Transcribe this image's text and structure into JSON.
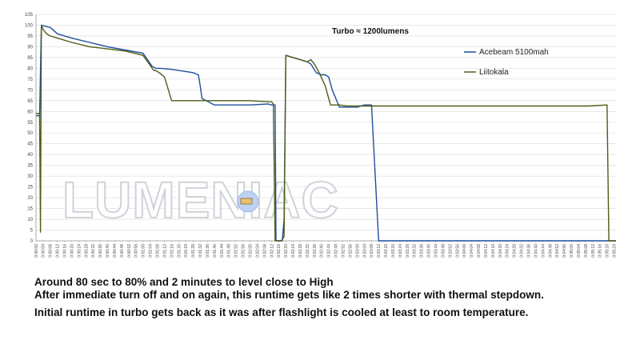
{
  "chart_data": {
    "type": "line",
    "annotation": "Turbo  ≈ 1200lumens",
    "watermark": "LUMENIAC",
    "ylim": [
      0,
      105
    ],
    "yticks": [
      0,
      5,
      10,
      15,
      20,
      25,
      30,
      35,
      40,
      45,
      50,
      55,
      60,
      65,
      70,
      75,
      80,
      85,
      90,
      95,
      100,
      105
    ],
    "xlim_seconds": [
      0,
      325
    ],
    "x_tick_step_seconds": 4,
    "grid": true,
    "legend_position": "right",
    "series": [
      {
        "name": "Acebeam 5100mah",
        "color": "#1f4e9c",
        "x_seconds": [
          0,
          1,
          2,
          3,
          5,
          8,
          12,
          20,
          30,
          40,
          50,
          60,
          65,
          67,
          70,
          76,
          80,
          84,
          88,
          91,
          92,
          93,
          100,
          110,
          120,
          130,
          132,
          134,
          134.5,
          135,
          136,
          137,
          138,
          139,
          140,
          144,
          148,
          152,
          154,
          157,
          160,
          162,
          164,
          166,
          170,
          174,
          180,
          184,
          188,
          192,
          195,
          198,
          199,
          200,
          210,
          220,
          230,
          240,
          250,
          260,
          262,
          264,
          266,
          268,
          270,
          280,
          290,
          300,
          310,
          320,
          325
        ],
        "y_values": [
          58,
          58,
          58,
          100,
          99.5,
          99,
          96,
          94,
          92,
          90,
          88.5,
          87,
          81,
          80,
          80,
          79.5,
          79,
          78.5,
          78,
          77,
          72,
          66,
          63,
          63,
          63,
          63.5,
          63,
          63,
          0,
          0,
          0,
          0,
          0,
          10,
          86,
          85,
          84,
          83,
          82,
          78,
          77,
          77,
          76,
          70,
          62,
          62,
          62,
          63,
          63,
          0,
          0,
          0,
          0,
          0,
          0,
          0,
          0,
          0,
          0,
          0,
          0,
          0,
          0,
          0,
          0,
          0,
          0,
          0,
          0,
          0,
          0
        ]
      },
      {
        "name": "Liitokala",
        "color": "#4f5d16",
        "x_seconds": [
          0,
          1,
          2,
          2.5,
          3,
          4,
          6,
          8,
          12,
          20,
          30,
          40,
          50,
          60,
          66,
          67,
          69,
          72,
          76,
          80,
          84,
          86,
          88,
          90,
          100,
          110,
          120,
          130,
          132,
          133,
          134,
          135,
          136,
          137,
          138,
          139,
          140,
          144,
          148,
          152,
          154,
          156,
          158,
          162,
          165,
          170,
          174,
          180,
          185,
          190,
          195,
          200,
          210,
          220,
          230,
          240,
          250,
          260,
          270,
          280,
          290,
          300,
          310,
          320,
          321,
          322,
          325
        ],
        "y_values": [
          59,
          59,
          59,
          4,
          100,
          98,
          96,
          95,
          94,
          92,
          90,
          89,
          88,
          86,
          79,
          79,
          78,
          76,
          65,
          65,
          65,
          65,
          65,
          65,
          65,
          65,
          65,
          64.5,
          64.5,
          63.5,
          0,
          0,
          0,
          0,
          0.5,
          2,
          86,
          85,
          84,
          83,
          84,
          82,
          79,
          72,
          63,
          63,
          62.5,
          62.5,
          62.5,
          62.5,
          62.5,
          62.5,
          62.5,
          62.5,
          62.5,
          62.5,
          62.5,
          62.5,
          62.5,
          62.5,
          62.5,
          62.5,
          62.5,
          63,
          0,
          0,
          0
        ]
      }
    ]
  },
  "notes": {
    "line1": "Around 80  sec to 80%  and 2 minutes to level close to High",
    "line2": "After immediate turn off and on again, this runtime gets like 2 times shorter with thermal stepdown.",
    "line3": "Initial runtime in turbo gets back as it was after flashlight is cooled at least to room temperature."
  }
}
